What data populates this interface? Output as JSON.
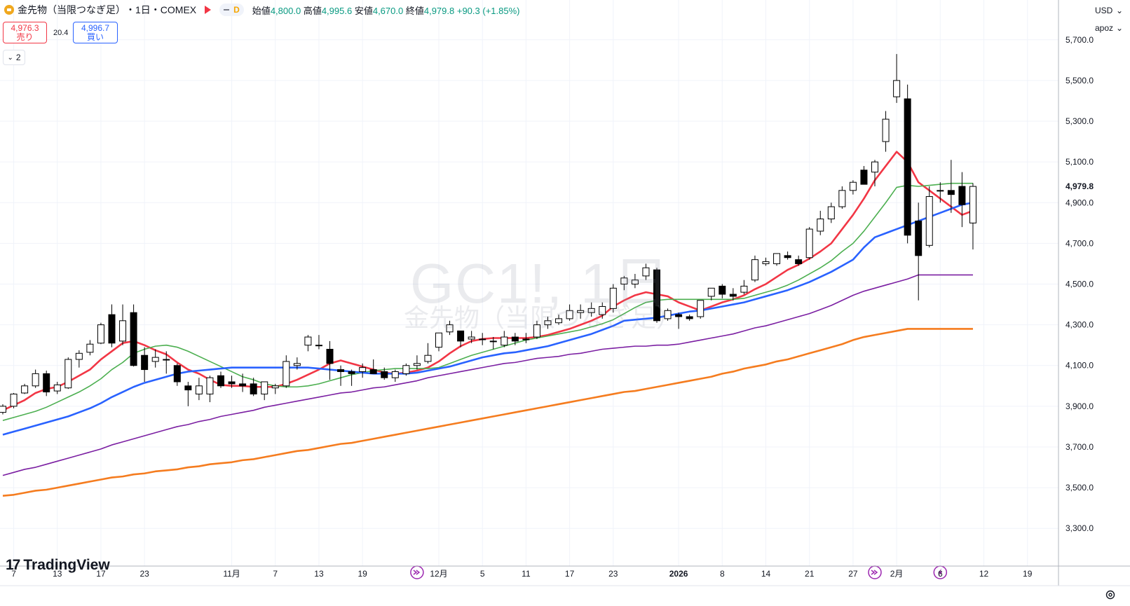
{
  "header": {
    "title": "金先物（当限つなぎ足）",
    "interval": "・1日・COMEX",
    "toggle_letter": "D",
    "ohlc": {
      "open_label": "始値",
      "open": "4,800.0",
      "high_label": "高値",
      "high": "4,995.6",
      "low_label": "安値",
      "low": "4,670.0",
      "close_label": "終値",
      "close": "4,979.8",
      "change": "+90.3 (+1.85%)"
    }
  },
  "trade": {
    "sell_price": "4,976.3",
    "sell_label": "売り",
    "spread": "20.4",
    "buy_price": "4,996.7",
    "buy_label": "買い"
  },
  "indicators_toggle": {
    "count": "2"
  },
  "watermark": {
    "symbol": "GC1!, 1日",
    "name": "金先物（当限つなぎ足）"
  },
  "price_scale": {
    "currency": "USD",
    "mode": "apoz",
    "last_price": "4,979.8",
    "ticks": [
      "5,700.0",
      "5,500.0",
      "5,300.0",
      "5,100.0",
      "4,900.0",
      "4,700.0",
      "4,500.0",
      "4,300.0",
      "4,100.0",
      "3,900.0",
      "3,700.0",
      "3,500.0",
      "3,300.0"
    ]
  },
  "logo": {
    "text": "TradingView",
    "mark": "17"
  },
  "colors": {
    "up": "#ffffff",
    "down": "#000000",
    "ma5": "#f23645",
    "ma10": "#4caf50",
    "ma20": "#2962ff",
    "ma60": "#7b1fa2",
    "ma120": "#f57c1f",
    "last": "#131722"
  },
  "chart_data": {
    "type": "candlestick",
    "title": "金先物（当限つなぎ足）",
    "ylim": [
      3150,
      5800
    ],
    "x_ticks": [
      {
        "label": "7",
        "i": 1
      },
      {
        "label": "13",
        "i": 5
      },
      {
        "label": "17",
        "i": 9
      },
      {
        "label": "23",
        "i": 13
      },
      {
        "label": "11月",
        "i": 21
      },
      {
        "label": "7",
        "i": 25
      },
      {
        "label": "13",
        "i": 29
      },
      {
        "label": "19",
        "i": 33
      },
      {
        "label": "12月",
        "i": 40
      },
      {
        "label": "5",
        "i": 44
      },
      {
        "label": "11",
        "i": 48
      },
      {
        "label": "17",
        "i": 52
      },
      {
        "label": "23",
        "i": 56
      },
      {
        "label": "2026",
        "i": 62,
        "bold": true
      },
      {
        "label": "8",
        "i": 66
      },
      {
        "label": "14",
        "i": 70
      },
      {
        "label": "21",
        "i": 74
      },
      {
        "label": "27",
        "i": 78
      },
      {
        "label": "2月",
        "i": 82
      },
      {
        "label": "6",
        "i": 86
      },
      {
        "label": "12",
        "i": 90
      },
      {
        "label": "19",
        "i": 94
      }
    ],
    "events": [
      {
        "type": "dividend",
        "i": 38
      },
      {
        "type": "dividend",
        "i": 80
      },
      {
        "type": "earnings",
        "i": 86
      }
    ],
    "candles": [
      [
        3870,
        3910,
        3860,
        3900
      ],
      [
        3900,
        3965,
        3890,
        3960
      ],
      [
        3965,
        4010,
        3960,
        4000
      ],
      [
        4000,
        4080,
        3990,
        4060
      ],
      [
        4060,
        4075,
        3950,
        3970
      ],
      [
        3975,
        4020,
        3960,
        4005
      ],
      [
        3990,
        4140,
        3985,
        4130
      ],
      [
        4130,
        4175,
        4090,
        4160
      ],
      [
        4165,
        4225,
        4150,
        4205
      ],
      [
        4210,
        4310,
        4205,
        4300
      ],
      [
        4350,
        4400,
        4190,
        4210
      ],
      [
        4220,
        4400,
        4200,
        4320
      ],
      [
        4360,
        4400,
        4095,
        4100
      ],
      [
        4150,
        4190,
        4020,
        4080
      ],
      [
        4120,
        4180,
        4090,
        4140
      ],
      [
        4130,
        4170,
        4060,
        4130
      ],
      [
        4100,
        4110,
        4000,
        4020
      ],
      [
        4000,
        4020,
        3900,
        3980
      ],
      [
        3960,
        4040,
        3930,
        4000
      ],
      [
        3960,
        4050,
        3920,
        4040
      ],
      [
        4050,
        4070,
        3990,
        4000
      ],
      [
        4020,
        4050,
        3990,
        4010
      ],
      [
        4010,
        4060,
        3970,
        4000
      ],
      [
        4010,
        4040,
        3950,
        3960
      ],
      [
        3960,
        4020,
        3930,
        4020
      ],
      [
        3990,
        4010,
        3960,
        4000
      ],
      [
        4000,
        4150,
        3990,
        4120
      ],
      [
        4100,
        4140,
        4080,
        4110
      ],
      [
        4200,
        4250,
        4170,
        4240
      ],
      [
        4200,
        4250,
        4180,
        4200
      ],
      [
        4180,
        4220,
        4030,
        4110
      ],
      [
        4080,
        4100,
        4000,
        4070
      ],
      [
        4070,
        4080,
        4000,
        4060
      ],
      [
        4070,
        4110,
        4040,
        4090
      ],
      [
        4080,
        4130,
        4060,
        4060
      ],
      [
        4070,
        4090,
        4030,
        4040
      ],
      [
        4040,
        4080,
        4020,
        4070
      ],
      [
        4060,
        4110,
        4050,
        4100
      ],
      [
        4100,
        4150,
        4080,
        4110
      ],
      [
        4120,
        4210,
        4110,
        4150
      ],
      [
        4190,
        4260,
        4170,
        4260
      ],
      [
        4265,
        4320,
        4250,
        4300
      ],
      [
        4270,
        4270,
        4190,
        4220
      ],
      [
        4230,
        4270,
        4210,
        4240
      ],
      [
        4230,
        4260,
        4200,
        4230
      ],
      [
        4220,
        4240,
        4180,
        4220
      ],
      [
        4200,
        4270,
        4190,
        4240
      ],
      [
        4240,
        4260,
        4200,
        4220
      ],
      [
        4230,
        4260,
        4210,
        4230
      ],
      [
        4240,
        4320,
        4230,
        4300
      ],
      [
        4300,
        4340,
        4280,
        4320
      ],
      [
        4310,
        4350,
        4300,
        4330
      ],
      [
        4330,
        4400,
        4320,
        4370
      ],
      [
        4360,
        4400,
        4330,
        4370
      ],
      [
        4360,
        4410,
        4340,
        4380
      ],
      [
        4350,
        4410,
        4330,
        4390
      ],
      [
        4380,
        4500,
        4360,
        4480
      ],
      [
        4500,
        4540,
        4470,
        4530
      ],
      [
        4500,
        4550,
        4480,
        4520
      ],
      [
        4540,
        4600,
        4520,
        4580
      ],
      [
        4570,
        4580,
        4310,
        4320
      ],
      [
        4330,
        4380,
        4320,
        4370
      ],
      [
        4350,
        4360,
        4280,
        4340
      ],
      [
        4340,
        4350,
        4320,
        4330
      ],
      [
        4340,
        4420,
        4330,
        4420
      ],
      [
        4440,
        4480,
        4420,
        4480
      ],
      [
        4490,
        4500,
        4430,
        4450
      ],
      [
        4450,
        4480,
        4420,
        4440
      ],
      [
        4460,
        4520,
        4450,
        4490
      ],
      [
        4520,
        4640,
        4510,
        4620
      ],
      [
        4600,
        4630,
        4590,
        4610
      ],
      [
        4600,
        4650,
        4590,
        4650
      ],
      [
        4640,
        4660,
        4620,
        4630
      ],
      [
        4620,
        4640,
        4590,
        4600
      ],
      [
        4630,
        4780,
        4620,
        4770
      ],
      [
        4760,
        4860,
        4740,
        4820
      ],
      [
        4820,
        4900,
        4800,
        4880
      ],
      [
        4880,
        4980,
        4870,
        4960
      ],
      [
        4960,
        5010,
        4940,
        5000
      ],
      [
        5060,
        5080,
        4990,
        4990
      ],
      [
        5050,
        5110,
        4980,
        5100
      ],
      [
        5200,
        5350,
        5150,
        5310
      ],
      [
        5420,
        5630,
        5390,
        5500
      ],
      [
        5410,
        5480,
        4700,
        4740
      ],
      [
        4810,
        4900,
        4420,
        4640
      ],
      [
        4690,
        4980,
        4680,
        4930
      ],
      [
        4960,
        5000,
        4900,
        4960
      ],
      [
        4960,
        5110,
        4850,
        4940
      ],
      [
        4980,
        5050,
        4780,
        4890
      ],
      [
        4800,
        4995.6,
        4670,
        4979.8
      ]
    ],
    "series": [
      {
        "name": "MA5",
        "color": "#f23645",
        "values": [
          3880,
          3905,
          3930,
          3965,
          3985,
          3995,
          4020,
          4050,
          4080,
          4130,
          4170,
          4210,
          4220,
          4200,
          4175,
          4155,
          4115,
          4080,
          4060,
          4030,
          4005,
          4000,
          4000,
          3995,
          3995,
          3995,
          4010,
          4030,
          4055,
          4080,
          4110,
          4125,
          4110,
          4095,
          4080,
          4065,
          4060,
          4065,
          4075,
          4090,
          4120,
          4160,
          4195,
          4220,
          4230,
          4235,
          4235,
          4235,
          4235,
          4240,
          4250,
          4265,
          4280,
          4300,
          4320,
          4345,
          4390,
          4420,
          4445,
          4460,
          4450,
          4440,
          4410,
          4390,
          4370,
          4390,
          4410,
          4425,
          4445,
          4475,
          4500,
          4535,
          4570,
          4595,
          4625,
          4660,
          4700,
          4770,
          4840,
          4920,
          5010,
          5080,
          5150,
          5100,
          5000,
          4960,
          4920,
          4880,
          4840,
          4860
        ]
      },
      {
        "name": "MA10",
        "color": "#4caf50",
        "values": [
          3830,
          3845,
          3860,
          3875,
          3895,
          3920,
          3945,
          3970,
          4000,
          4035,
          4080,
          4115,
          4160,
          4180,
          4195,
          4200,
          4190,
          4170,
          4145,
          4120,
          4095,
          4070,
          4045,
          4030,
          4010,
          4000,
          3995,
          3995,
          4000,
          4010,
          4025,
          4040,
          4055,
          4065,
          4075,
          4080,
          4085,
          4085,
          4085,
          4085,
          4090,
          4110,
          4130,
          4150,
          4165,
          4180,
          4195,
          4210,
          4225,
          4235,
          4245,
          4255,
          4265,
          4275,
          4290,
          4305,
          4325,
          4355,
          4385,
          4410,
          4420,
          4425,
          4425,
          4425,
          4425,
          4425,
          4425,
          4425,
          4430,
          4445,
          4460,
          4475,
          4495,
          4520,
          4550,
          4580,
          4615,
          4660,
          4700,
          4760,
          4830,
          4900,
          4975,
          4985,
          4980,
          4985,
          4990,
          4995,
          4995,
          4995
        ]
      },
      {
        "name": "MA20",
        "color": "#2962ff",
        "values": [
          3760,
          3775,
          3790,
          3805,
          3820,
          3835,
          3850,
          3870,
          3890,
          3915,
          3945,
          3970,
          3995,
          4015,
          4030,
          4045,
          4060,
          4070,
          4075,
          4080,
          4085,
          4090,
          4090,
          4090,
          4090,
          4090,
          4090,
          4090,
          4090,
          4085,
          4080,
          4075,
          4070,
          4065,
          4060,
          4060,
          4060,
          4060,
          4065,
          4075,
          4085,
          4095,
          4110,
          4125,
          4140,
          4150,
          4160,
          4165,
          4175,
          4185,
          4195,
          4210,
          4225,
          4240,
          4255,
          4275,
          4295,
          4320,
          4325,
          4330,
          4335,
          4345,
          4355,
          4365,
          4370,
          4380,
          4390,
          4400,
          4410,
          4425,
          4440,
          4455,
          4470,
          4490,
          4510,
          4535,
          4560,
          4590,
          4620,
          4680,
          4730,
          4750,
          4770,
          4790,
          4810,
          4830,
          4850,
          4870,
          4890,
          4900
        ]
      },
      {
        "name": "MA60",
        "color": "#7b1fa2",
        "values": [
          3560,
          3575,
          3590,
          3600,
          3615,
          3630,
          3645,
          3660,
          3675,
          3690,
          3710,
          3725,
          3740,
          3755,
          3770,
          3785,
          3800,
          3810,
          3825,
          3835,
          3850,
          3860,
          3870,
          3880,
          3895,
          3905,
          3915,
          3925,
          3935,
          3945,
          3955,
          3965,
          3970,
          3980,
          3990,
          3995,
          4005,
          4015,
          4025,
          4040,
          4050,
          4060,
          4070,
          4080,
          4090,
          4100,
          4110,
          4115,
          4125,
          4135,
          4140,
          4145,
          4155,
          4160,
          4170,
          4180,
          4185,
          4190,
          4195,
          4195,
          4200,
          4200,
          4205,
          4215,
          4225,
          4235,
          4245,
          4255,
          4270,
          4285,
          4295,
          4310,
          4325,
          4340,
          4355,
          4375,
          4395,
          4420,
          4445,
          4465,
          4480,
          4495,
          4510,
          4525,
          4545,
          4545,
          4545,
          4545,
          4545,
          4545
        ]
      },
      {
        "name": "MA120",
        "color": "#f57c1f",
        "values": [
          3460,
          3465,
          3475,
          3485,
          3490,
          3500,
          3510,
          3520,
          3530,
          3540,
          3550,
          3555,
          3565,
          3570,
          3580,
          3585,
          3590,
          3600,
          3605,
          3615,
          3620,
          3625,
          3635,
          3640,
          3650,
          3660,
          3670,
          3680,
          3685,
          3695,
          3705,
          3715,
          3720,
          3730,
          3740,
          3750,
          3760,
          3770,
          3780,
          3790,
          3800,
          3810,
          3820,
          3830,
          3840,
          3850,
          3860,
          3870,
          3880,
          3890,
          3900,
          3910,
          3920,
          3930,
          3940,
          3950,
          3960,
          3970,
          3975,
          3985,
          3995,
          4005,
          4015,
          4025,
          4035,
          4045,
          4060,
          4070,
          4085,
          4095,
          4105,
          4120,
          4130,
          4145,
          4160,
          4175,
          4190,
          4205,
          4225,
          4240,
          4250,
          4260,
          4270,
          4280,
          4280,
          4280,
          4280,
          4280,
          4280,
          4280
        ]
      }
    ]
  }
}
